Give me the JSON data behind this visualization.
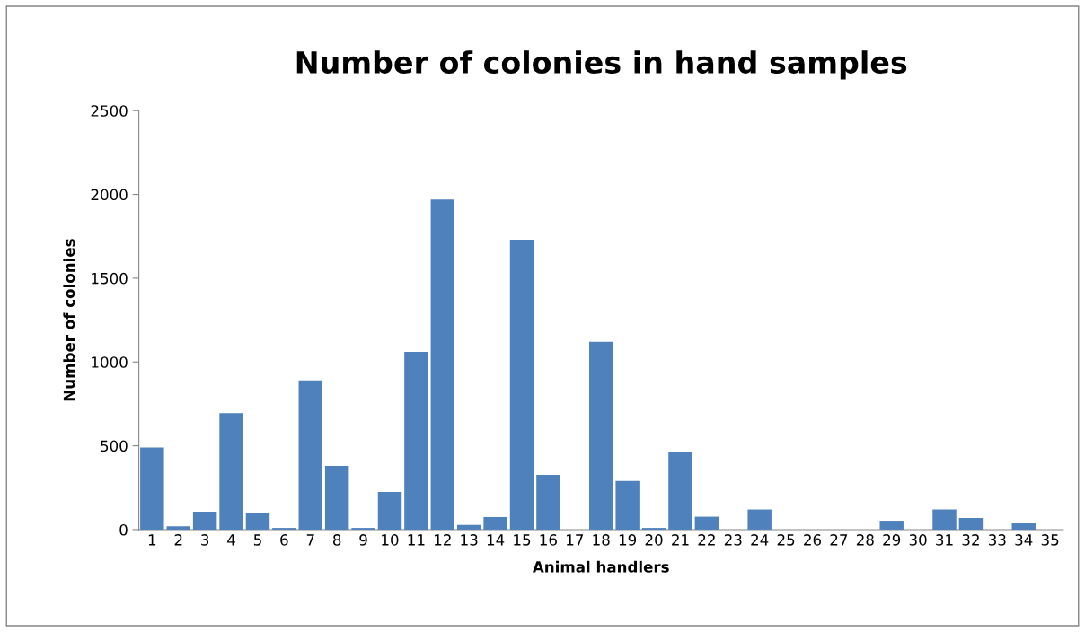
{
  "chart_data": {
    "type": "bar",
    "title": "Number of colonies in hand samples",
    "xlabel": "Animal handlers",
    "ylabel": "Number of colonies",
    "categories": [
      "1",
      "2",
      "3",
      "4",
      "5",
      "6",
      "7",
      "8",
      "9",
      "10",
      "11",
      "12",
      "13",
      "14",
      "15",
      "16",
      "17",
      "18",
      "19",
      "20",
      "21",
      "22",
      "23",
      "24",
      "25",
      "26",
      "27",
      "28",
      "29",
      "30",
      "31",
      "32",
      "33",
      "34",
      "35"
    ],
    "values": [
      490,
      20,
      107,
      695,
      101,
      10,
      890,
      380,
      10,
      225,
      1060,
      1970,
      28,
      75,
      1730,
      326,
      0,
      1120,
      290,
      10,
      460,
      77,
      0,
      120,
      0,
      0,
      0,
      0,
      53,
      0,
      120,
      70,
      0,
      37,
      0
    ],
    "color": "#4f81bd",
    "ylim": [
      0,
      2500
    ],
    "yticks": [
      0,
      500,
      1000,
      1500,
      2000,
      2500
    ],
    "grid": false,
    "legend": false
  }
}
